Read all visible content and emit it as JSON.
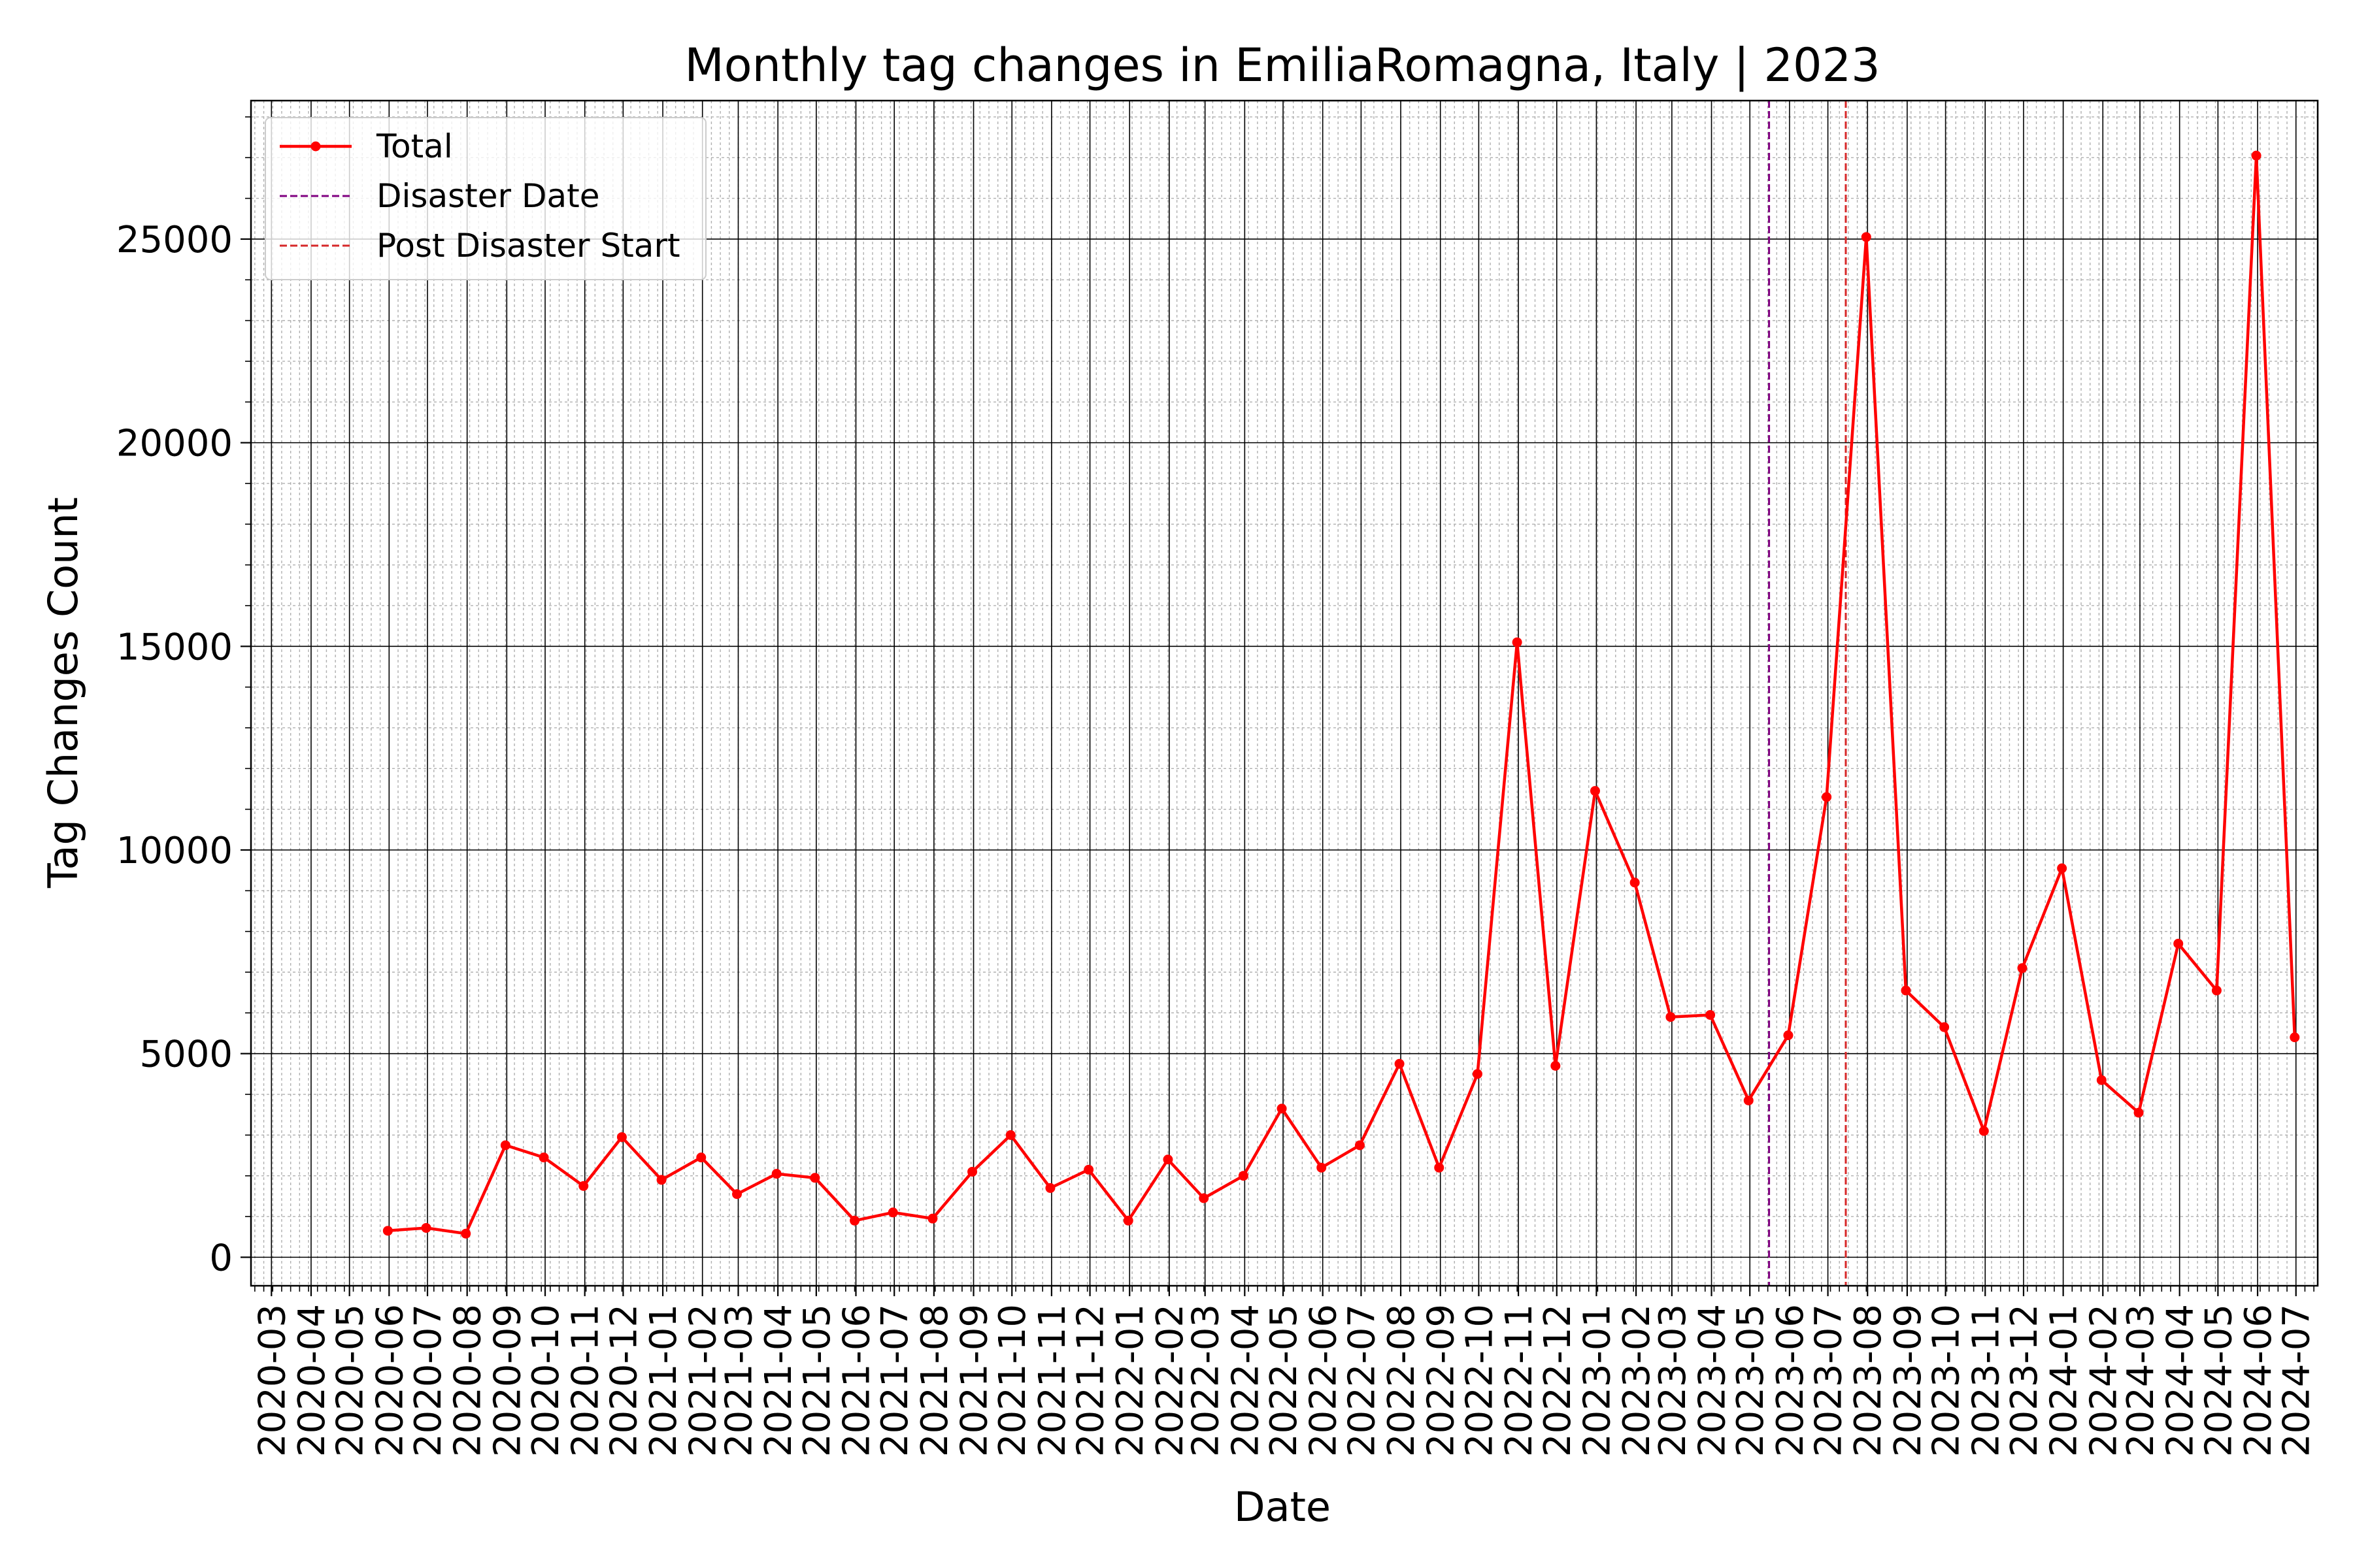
{
  "chart_data": {
    "type": "line",
    "title": "Monthly tag changes in EmiliaRomagna, Italy | 2023",
    "xlabel": "Date",
    "ylabel": "Tag Changes Count",
    "x_ticks": [
      "2020-03",
      "2020-04",
      "2020-05",
      "2020-06",
      "2020-07",
      "2020-08",
      "2020-09",
      "2020-10",
      "2020-11",
      "2020-12",
      "2021-01",
      "2021-02",
      "2021-03",
      "2021-04",
      "2021-05",
      "2021-06",
      "2021-07",
      "2021-08",
      "2021-09",
      "2021-10",
      "2021-11",
      "2021-12",
      "2022-01",
      "2022-02",
      "2022-03",
      "2022-04",
      "2022-05",
      "2022-06",
      "2022-07",
      "2022-08",
      "2022-09",
      "2022-10",
      "2022-11",
      "2022-12",
      "2023-01",
      "2023-02",
      "2023-03",
      "2023-04",
      "2023-05",
      "2023-06",
      "2023-07",
      "2023-08",
      "2023-09",
      "2023-10",
      "2023-11",
      "2023-12",
      "2024-01",
      "2024-02",
      "2024-03",
      "2024-04",
      "2024-05",
      "2024-06",
      "2024-07"
    ],
    "x_range": [
      "2020-02-14",
      "2024-07-18"
    ],
    "y_ticks": [
      0,
      5000,
      10000,
      15000,
      20000,
      25000
    ],
    "ylim": [
      -700,
      28400
    ],
    "grid": "major and minor",
    "legend_position": "top-left",
    "series": [
      {
        "name": "Total",
        "color": "#ff0000",
        "marker": "circle",
        "points": [
          {
            "x": "2020-05-31",
            "y": 650
          },
          {
            "x": "2020-06-30",
            "y": 720
          },
          {
            "x": "2020-07-31",
            "y": 580
          },
          {
            "x": "2020-08-31",
            "y": 2750
          },
          {
            "x": "2020-09-30",
            "y": 2450
          },
          {
            "x": "2020-10-31",
            "y": 1750
          },
          {
            "x": "2020-11-30",
            "y": 2950
          },
          {
            "x": "2020-12-31",
            "y": 1900
          },
          {
            "x": "2021-01-31",
            "y": 2450
          },
          {
            "x": "2021-02-28",
            "y": 1550
          },
          {
            "x": "2021-03-31",
            "y": 2050
          },
          {
            "x": "2021-04-30",
            "y": 1950
          },
          {
            "x": "2021-05-31",
            "y": 900
          },
          {
            "x": "2021-06-30",
            "y": 1100
          },
          {
            "x": "2021-07-31",
            "y": 950
          },
          {
            "x": "2021-08-31",
            "y": 2100
          },
          {
            "x": "2021-09-30",
            "y": 3000
          },
          {
            "x": "2021-10-31",
            "y": 1700
          },
          {
            "x": "2021-11-30",
            "y": 2150
          },
          {
            "x": "2021-12-31",
            "y": 900
          },
          {
            "x": "2022-01-31",
            "y": 2400
          },
          {
            "x": "2022-02-28",
            "y": 1450
          },
          {
            "x": "2022-03-31",
            "y": 2000
          },
          {
            "x": "2022-04-30",
            "y": 3650
          },
          {
            "x": "2022-05-31",
            "y": 2200
          },
          {
            "x": "2022-06-30",
            "y": 2750
          },
          {
            "x": "2022-07-31",
            "y": 4750
          },
          {
            "x": "2022-08-31",
            "y": 2200
          },
          {
            "x": "2022-09-30",
            "y": 4500
          },
          {
            "x": "2022-10-31",
            "y": 15100
          },
          {
            "x": "2022-11-30",
            "y": 4700
          },
          {
            "x": "2022-12-31",
            "y": 11450
          },
          {
            "x": "2023-01-31",
            "y": 9200
          },
          {
            "x": "2023-02-28",
            "y": 5900
          },
          {
            "x": "2023-03-31",
            "y": 5950
          },
          {
            "x": "2023-04-30",
            "y": 3850
          },
          {
            "x": "2023-05-31",
            "y": 5450
          },
          {
            "x": "2023-06-30",
            "y": 11300
          },
          {
            "x": "2023-07-31",
            "y": 25050
          },
          {
            "x": "2023-08-31",
            "y": 6550
          },
          {
            "x": "2023-09-30",
            "y": 5650
          },
          {
            "x": "2023-10-31",
            "y": 3100
          },
          {
            "x": "2023-11-30",
            "y": 7100
          },
          {
            "x": "2023-12-31",
            "y": 9550
          },
          {
            "x": "2024-01-31",
            "y": 4350
          },
          {
            "x": "2024-02-29",
            "y": 3550
          },
          {
            "x": "2024-03-31",
            "y": 7700
          },
          {
            "x": "2024-04-30",
            "y": 6550
          },
          {
            "x": "2024-05-31",
            "y": 27050
          },
          {
            "x": "2024-06-30",
            "y": 5400
          }
        ]
      }
    ],
    "vlines": [
      {
        "name": "Disaster Date",
        "x": "2023-05-16",
        "color": "#800080",
        "style": "dashed"
      },
      {
        "name": "Post Disaster Start",
        "x": "2023-07-15",
        "color": "#d62728",
        "style": "dashed"
      }
    ]
  }
}
